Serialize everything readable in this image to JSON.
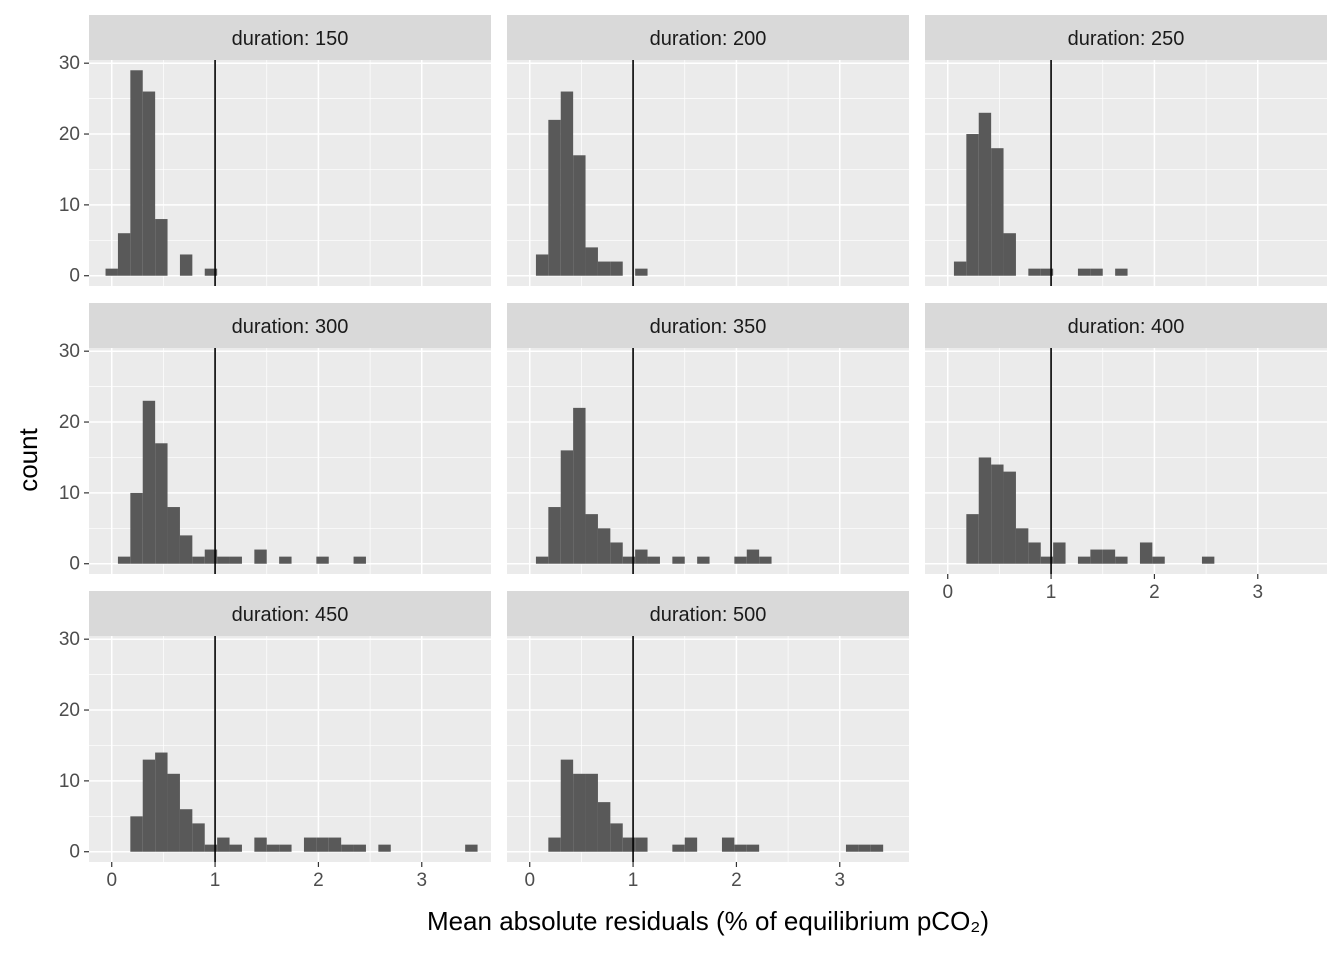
{
  "axis_titles": {
    "x": "Mean absolute residuals (% of equilibrium pCO₂)",
    "y": "count"
  },
  "chart_data": [
    {
      "type": "histogram",
      "title": "duration: 150",
      "color": "#595959",
      "vline": 1,
      "xlim": [
        -0.22,
        3.67
      ],
      "ylim": [
        -1.45,
        30.45
      ],
      "xticks": [
        0,
        1,
        2,
        3
      ],
      "yticks": [
        0,
        10,
        20,
        30
      ],
      "grid": true,
      "bins": [
        -0.06,
        0.06,
        0.18,
        0.3,
        0.42,
        0.54,
        0.66,
        0.78,
        0.9,
        1.02,
        1.14,
        1.26,
        1.38,
        1.5,
        1.62,
        1.74,
        1.86,
        1.98,
        2.1,
        2.22,
        2.34,
        2.46,
        2.58,
        2.7,
        2.82,
        2.94,
        3.06,
        3.18,
        3.3,
        3.42,
        3.54
      ],
      "values": [
        1,
        6,
        29,
        26,
        8,
        0,
        3,
        0,
        1,
        0,
        0,
        0,
        0,
        0,
        0,
        0,
        0,
        0,
        0,
        0,
        0,
        0,
        0,
        0,
        0,
        0,
        0,
        0,
        0,
        0
      ]
    },
    {
      "type": "histogram",
      "title": "duration: 200",
      "color": "#595959",
      "vline": 1,
      "xlim": [
        -0.22,
        3.67
      ],
      "ylim": [
        -1.45,
        30.45
      ],
      "xticks": [
        0,
        1,
        2,
        3
      ],
      "yticks": [
        0,
        10,
        20,
        30
      ],
      "grid": true,
      "bins": [
        -0.06,
        0.06,
        0.18,
        0.3,
        0.42,
        0.54,
        0.66,
        0.78,
        0.9,
        1.02,
        1.14,
        1.26,
        1.38,
        1.5,
        1.62,
        1.74,
        1.86,
        1.98,
        2.1,
        2.22,
        2.34,
        2.46,
        2.58,
        2.7,
        2.82,
        2.94,
        3.06,
        3.18,
        3.3,
        3.42,
        3.54
      ],
      "values": [
        0,
        3,
        22,
        26,
        17,
        4,
        2,
        2,
        0,
        1,
        0,
        0,
        0,
        0,
        0,
        0,
        0,
        0,
        0,
        0,
        0,
        0,
        0,
        0,
        0,
        0,
        0,
        0,
        0,
        0
      ]
    },
    {
      "type": "histogram",
      "title": "duration: 250",
      "color": "#595959",
      "vline": 1,
      "xlim": [
        -0.22,
        3.67
      ],
      "ylim": [
        -1.45,
        30.45
      ],
      "xticks": [
        0,
        1,
        2,
        3
      ],
      "yticks": [
        0,
        10,
        20,
        30
      ],
      "grid": true,
      "bins": [
        -0.06,
        0.06,
        0.18,
        0.3,
        0.42,
        0.54,
        0.66,
        0.78,
        0.9,
        1.02,
        1.14,
        1.26,
        1.38,
        1.5,
        1.62,
        1.74,
        1.86,
        1.98,
        2.1,
        2.22,
        2.34,
        2.46,
        2.58,
        2.7,
        2.82,
        2.94,
        3.06,
        3.18,
        3.3,
        3.42,
        3.54
      ],
      "values": [
        0,
        2,
        20,
        23,
        18,
        6,
        0,
        1,
        1,
        0,
        0,
        1,
        1,
        0,
        1,
        0,
        0,
        0,
        0,
        0,
        0,
        0,
        0,
        0,
        0,
        0,
        0,
        0,
        0,
        0
      ]
    },
    {
      "type": "histogram",
      "title": "duration: 300",
      "color": "#595959",
      "vline": 1,
      "xlim": [
        -0.22,
        3.67
      ],
      "ylim": [
        -1.45,
        30.45
      ],
      "xticks": [
        0,
        1,
        2,
        3
      ],
      "yticks": [
        0,
        10,
        20,
        30
      ],
      "grid": true,
      "bins": [
        -0.06,
        0.06,
        0.18,
        0.3,
        0.42,
        0.54,
        0.66,
        0.78,
        0.9,
        1.02,
        1.14,
        1.26,
        1.38,
        1.5,
        1.62,
        1.74,
        1.86,
        1.98,
        2.1,
        2.22,
        2.34,
        2.46,
        2.58,
        2.7,
        2.82,
        2.94,
        3.06,
        3.18,
        3.3,
        3.42,
        3.54
      ],
      "values": [
        0,
        1,
        10,
        23,
        17,
        8,
        4,
        1,
        2,
        1,
        1,
        0,
        2,
        0,
        1,
        0,
        0,
        1,
        0,
        0,
        1,
        0,
        0,
        0,
        0,
        0,
        0,
        0,
        0,
        0
      ]
    },
    {
      "type": "histogram",
      "title": "duration: 350",
      "color": "#595959",
      "vline": 1,
      "xlim": [
        -0.22,
        3.67
      ],
      "ylim": [
        -1.45,
        30.45
      ],
      "xticks": [
        0,
        1,
        2,
        3
      ],
      "yticks": [
        0,
        10,
        20,
        30
      ],
      "grid": true,
      "bins": [
        -0.06,
        0.06,
        0.18,
        0.3,
        0.42,
        0.54,
        0.66,
        0.78,
        0.9,
        1.02,
        1.14,
        1.26,
        1.38,
        1.5,
        1.62,
        1.74,
        1.86,
        1.98,
        2.1,
        2.22,
        2.34,
        2.46,
        2.58,
        2.7,
        2.82,
        2.94,
        3.06,
        3.18,
        3.3,
        3.42,
        3.54
      ],
      "values": [
        0,
        1,
        8,
        16,
        22,
        7,
        5,
        3,
        1,
        2,
        1,
        0,
        1,
        0,
        1,
        0,
        0,
        1,
        2,
        1,
        0,
        0,
        0,
        0,
        0,
        0,
        0,
        0,
        0,
        0
      ]
    },
    {
      "type": "histogram",
      "title": "duration: 400",
      "color": "#595959",
      "vline": 1,
      "xlim": [
        -0.22,
        3.67
      ],
      "ylim": [
        -1.45,
        30.45
      ],
      "xticks": [
        0,
        1,
        2,
        3
      ],
      "yticks": [
        0,
        10,
        20,
        30
      ],
      "grid": true,
      "bins": [
        -0.06,
        0.06,
        0.18,
        0.3,
        0.42,
        0.54,
        0.66,
        0.78,
        0.9,
        1.02,
        1.14,
        1.26,
        1.38,
        1.5,
        1.62,
        1.74,
        1.86,
        1.98,
        2.1,
        2.22,
        2.34,
        2.46,
        2.58,
        2.7,
        2.82,
        2.94,
        3.06,
        3.18,
        3.3,
        3.42,
        3.54
      ],
      "values": [
        0,
        0,
        7,
        15,
        14,
        13,
        5,
        3,
        1,
        3,
        0,
        1,
        2,
        2,
        1,
        0,
        3,
        1,
        0,
        0,
        0,
        1,
        0,
        0,
        0,
        0,
        0,
        0,
        0,
        0
      ]
    },
    {
      "type": "histogram",
      "title": "duration: 450",
      "color": "#595959",
      "vline": 1,
      "xlim": [
        -0.22,
        3.67
      ],
      "ylim": [
        -1.45,
        30.45
      ],
      "xticks": [
        0,
        1,
        2,
        3
      ],
      "yticks": [
        0,
        10,
        20,
        30
      ],
      "grid": true,
      "bins": [
        -0.06,
        0.06,
        0.18,
        0.3,
        0.42,
        0.54,
        0.66,
        0.78,
        0.9,
        1.02,
        1.14,
        1.26,
        1.38,
        1.5,
        1.62,
        1.74,
        1.86,
        1.98,
        2.1,
        2.22,
        2.34,
        2.46,
        2.58,
        2.7,
        2.82,
        2.94,
        3.06,
        3.18,
        3.3,
        3.42,
        3.54
      ],
      "values": [
        0,
        0,
        5,
        13,
        14,
        11,
        6,
        4,
        1,
        2,
        1,
        0,
        2,
        1,
        1,
        0,
        2,
        2,
        2,
        1,
        1,
        0,
        1,
        0,
        0,
        0,
        0,
        0,
        0,
        1
      ]
    },
    {
      "type": "histogram",
      "title": "duration: 500",
      "color": "#595959",
      "vline": 1,
      "xlim": [
        -0.22,
        3.67
      ],
      "ylim": [
        -1.45,
        30.45
      ],
      "xticks": [
        0,
        1,
        2,
        3
      ],
      "yticks": [
        0,
        10,
        20,
        30
      ],
      "grid": true,
      "bins": [
        -0.06,
        0.06,
        0.18,
        0.3,
        0.42,
        0.54,
        0.66,
        0.78,
        0.9,
        1.02,
        1.14,
        1.26,
        1.38,
        1.5,
        1.62,
        1.74,
        1.86,
        1.98,
        2.1,
        2.22,
        2.34,
        2.46,
        2.58,
        2.7,
        2.82,
        2.94,
        3.06,
        3.18,
        3.3,
        3.42,
        3.54
      ],
      "values": [
        0,
        0,
        2,
        13,
        11,
        11,
        7,
        4,
        2,
        2,
        0,
        0,
        1,
        2,
        0,
        0,
        2,
        1,
        1,
        0,
        0,
        0,
        0,
        0,
        0,
        0,
        1,
        1,
        1,
        0
      ]
    }
  ]
}
